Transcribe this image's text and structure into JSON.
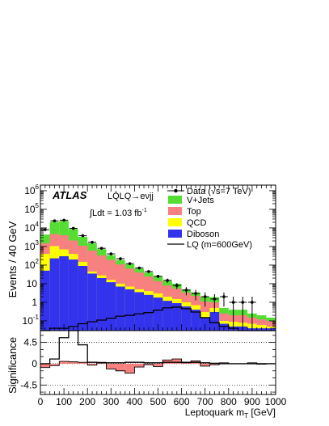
{
  "chart_data": [
    {
      "type": "bar",
      "stacked": true,
      "log_y": true,
      "xlabel": "Leptoquark m_T [GeV]",
      "ylabel": "Events / 40 GeV",
      "xlim": [
        0,
        1000
      ],
      "ylim": [
        0.03,
        2000000
      ],
      "bin_width": 40,
      "x_ticks": [
        "0",
        "100",
        "200",
        "300",
        "400",
        "500",
        "600",
        "700",
        "800",
        "900",
        "1000"
      ],
      "y_ticks": [
        {
          "v": 0.1,
          "base": "10",
          "exp": "-1"
        },
        {
          "v": 1,
          "base": "1",
          "exp": ""
        },
        {
          "v": 10,
          "base": "10",
          "exp": ""
        },
        {
          "v": 100,
          "base": "10",
          "exp": "2"
        },
        {
          "v": 1000,
          "base": "10",
          "exp": "3"
        },
        {
          "v": 10000,
          "base": "10",
          "exp": "4"
        },
        {
          "v": 100000,
          "base": "10",
          "exp": "5"
        },
        {
          "v": 1000000,
          "base": "10",
          "exp": "6"
        }
      ],
      "bin_edges": [
        0,
        40,
        80,
        120,
        160,
        200,
        240,
        280,
        320,
        360,
        400,
        440,
        480,
        520,
        560,
        600,
        640,
        680,
        720,
        760,
        800,
        840,
        880,
        920,
        960,
        1000
      ],
      "stack_totals": [
        {
          "name": "Diboson",
          "color": "#3333ee",
          "values": [
            50,
            230,
            300,
            200,
            90,
            35,
            20,
            12,
            7,
            5,
            3.5,
            2.5,
            1.8,
            1.2,
            0.9,
            0.6,
            0.4,
            0.15,
            0.3,
            0.07,
            0.05,
            0.05,
            0.04,
            0.04,
            0.04
          ]
        },
        {
          "name": "QCD",
          "color": "#ffff00",
          "values": [
            400,
            1050,
            700,
            400,
            150,
            45,
            28,
            16,
            10,
            7,
            5,
            4,
            3,
            2,
            1.5,
            1,
            0.7,
            0.3,
            0.5,
            0.1,
            0.09,
            0.08,
            0.07,
            0.06,
            0.05
          ]
        },
        {
          "name": "Top",
          "color": "#f88080",
          "values": [
            1500,
            4700,
            4000,
            2100,
            1100,
            600,
            330,
            190,
            110,
            65,
            40,
            24,
            14,
            8,
            5.5,
            3.3,
            2.2,
            1.1,
            1,
            0.25,
            0.2,
            0.2,
            0.15,
            0.12,
            0.1
          ]
        },
        {
          "name": "V+Jets",
          "color": "#55dd33",
          "values": [
            4400,
            21000,
            24000,
            8800,
            3300,
            1500,
            720,
            340,
            185,
            110,
            65,
            40,
            25,
            14,
            10,
            5,
            3.4,
            1.9,
            1.9,
            0.5,
            0.4,
            0.4,
            0.25,
            0.2,
            0.15
          ]
        }
      ],
      "data_points": [
        {
          "x": 20,
          "y": 8000
        },
        {
          "x": 60,
          "y": 24000
        },
        {
          "x": 100,
          "y": 26000
        },
        {
          "x": 140,
          "y": 9500
        },
        {
          "x": 180,
          "y": 3800
        },
        {
          "x": 220,
          "y": 1700
        },
        {
          "x": 260,
          "y": 800
        },
        {
          "x": 300,
          "y": 400
        },
        {
          "x": 340,
          "y": 220
        },
        {
          "x": 380,
          "y": 120
        },
        {
          "x": 420,
          "y": 70
        },
        {
          "x": 460,
          "y": 45
        },
        {
          "x": 500,
          "y": 25
        },
        {
          "x": 540,
          "y": 15
        },
        {
          "x": 580,
          "y": 8
        },
        {
          "x": 620,
          "y": 4.5
        },
        {
          "x": 660,
          "y": 3
        },
        {
          "x": 700,
          "y": 2
        },
        {
          "x": 740,
          "y": 1.5
        },
        {
          "x": 780,
          "y": 2
        },
        {
          "x": 820,
          "y": 1
        },
        {
          "x": 860,
          "y": 1
        },
        {
          "x": 900,
          "y": 1
        }
      ],
      "lq_signal": {
        "name": "LQ (m=600GeV)",
        "values": [
          0.03,
          0.04,
          0.04,
          0.05,
          0.07,
          0.09,
          0.11,
          0.14,
          0.18,
          0.2,
          0.24,
          0.28,
          0.38,
          0.5,
          0.55,
          0.45,
          0.3,
          0.15,
          0.08,
          0.05,
          0.04,
          0.03,
          0.03,
          0.03,
          0.03
        ]
      },
      "legend": {
        "placement": "top-right",
        "entries": [
          {
            "label": "Data (√s=7 TeV)",
            "kind": "marker"
          },
          {
            "label": "V+Jets",
            "kind": "box",
            "color": "#55dd33"
          },
          {
            "label": "Top",
            "kind": "box",
            "color": "#f88080"
          },
          {
            "label": "QCD",
            "kind": "box",
            "color": "#ffff00"
          },
          {
            "label": "Diboson",
            "kind": "box",
            "color": "#3333ee"
          },
          {
            "label": "LQ (m=600GeV)",
            "kind": "line"
          }
        ]
      },
      "annotations": {
        "atlas": "ATLAS",
        "channel": "LQ̄LQ→eνjj",
        "lumi_prefix": "∫Ldt = 1.03 fb",
        "lumi_exp": "-1"
      }
    },
    {
      "type": "bar",
      "ylabel": "Significance",
      "xlabel": "Leptoquark m_T [GeV]",
      "ylim": [
        -6.5,
        7
      ],
      "y_ticks": [
        "-4.5",
        "0",
        "4.5"
      ],
      "dotted_lines": [
        -4.5,
        0,
        4.5
      ],
      "data_significance": [
        -0.8,
        -0.4,
        0.5,
        0.4,
        0.3,
        -0.3,
        0.3,
        -1.1,
        -1.5,
        -2.0,
        -0.7,
        -0.2,
        -0.6,
        0.8,
        1.0,
        0.2,
        0.6,
        -0.5,
        -0.2,
        0.2,
        0,
        0,
        0.2,
        -0.1,
        0
      ],
      "signal_significance": [
        0,
        1,
        5.5,
        7.0,
        4,
        0.3,
        0.2,
        0.2,
        0.2,
        0.3,
        0.3,
        0.2,
        0.2,
        0.3,
        0.3,
        0.3,
        0.3,
        0.2,
        0.1,
        0,
        0,
        0,
        0,
        0,
        0
      ]
    }
  ]
}
